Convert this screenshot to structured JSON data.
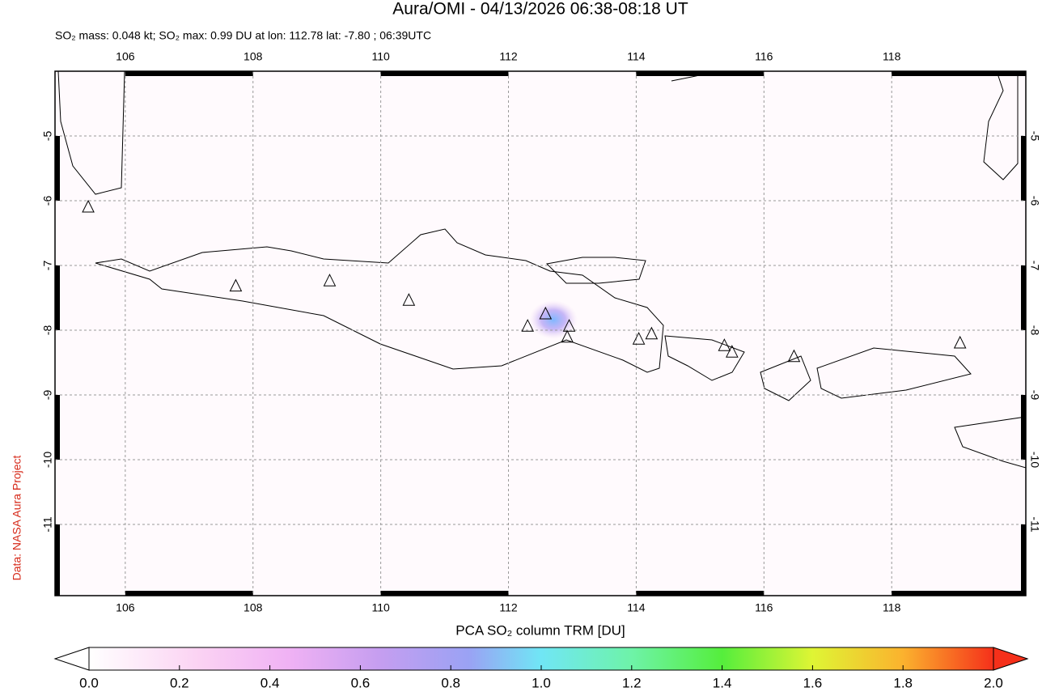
{
  "chart_data": {
    "type": "map",
    "title": "Aura/OMI - 04/13/2026 06:38-08:18 UT",
    "subtitle": "SO₂ mass: 0.048 kt; SO₂ max: 0.99 DU at lon: 112.78 lat: -7.80 ; 06:39UTC",
    "credit": "Data: NASA Aura Project",
    "xlim": [
      104.9,
      120.1
    ],
    "ylim": [
      -12.1,
      -4.0
    ],
    "xticks": [
      106,
      108,
      110,
      112,
      114,
      116,
      118
    ],
    "yticks": [
      -5,
      -6,
      -7,
      -8,
      -9,
      -10,
      -11
    ],
    "grid": true,
    "colorbar": {
      "label": "PCA SO₂ column TRM [DU]",
      "range": [
        0,
        2
      ],
      "ticks": [
        {
          "value": 0,
          "label": "0.0"
        },
        0.2,
        0.4,
        0.6,
        0.8,
        {
          "value": 1,
          "label": "1.0"
        },
        1.2,
        1.4,
        1.6,
        1.8,
        {
          "value": 2,
          "label": "2.0"
        }
      ]
    },
    "volcanoes": {
      "lon": [
        105.42,
        107.73,
        109.2,
        110.44,
        112.3,
        112.58,
        112.95,
        112.92,
        114.04,
        114.24,
        115.38,
        115.5,
        116.47,
        119.07
      ],
      "lat": [
        -6.1,
        -7.32,
        -7.24,
        -7.54,
        -7.94,
        -7.75,
        -7.94,
        -8.11,
        -8.14,
        -8.06,
        -8.24,
        -8.34,
        -8.41,
        -8.2
      ]
    }
  }
}
